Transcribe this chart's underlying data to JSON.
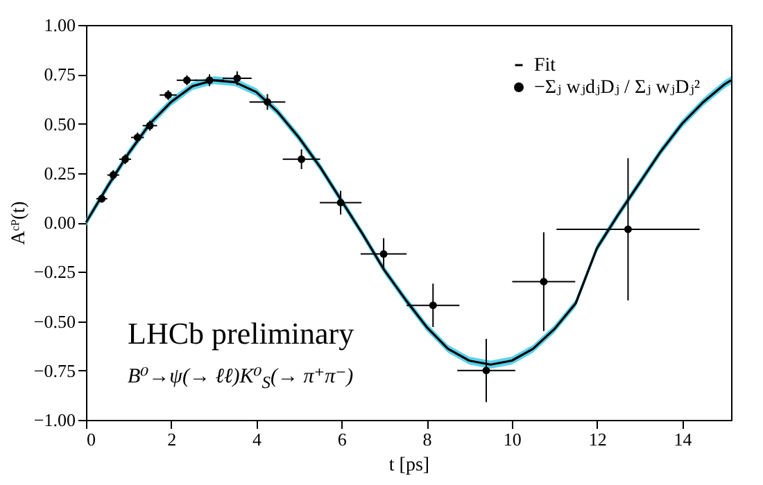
{
  "chart_data": {
    "type": "scatter",
    "xlabel": "t [ps]",
    "ylabel": "Aᶜᴾ(t)",
    "xlim": [
      0,
      15.15
    ],
    "xticks": [
      0,
      2,
      4,
      6,
      8,
      10,
      12,
      14
    ],
    "ylim": [
      -1,
      1
    ],
    "yticks": [
      {
        "value": -1,
        "label": "−1.00"
      },
      {
        "value": -0.75,
        "label": "−0.75"
      },
      {
        "value": -0.5,
        "label": "−0.50"
      },
      {
        "value": -0.25,
        "label": "−0.25"
      },
      {
        "value": 0,
        "label": "0.00"
      },
      {
        "value": 0.25,
        "label": "0.25"
      },
      {
        "value": 0.5,
        "label": "0.50"
      },
      {
        "value": 0.75,
        "label": "0.75"
      },
      {
        "value": 1,
        "label": "1.00"
      }
    ],
    "series": [
      {
        "name": "Fit",
        "type": "line",
        "color": "#000000",
        "x": [
          0,
          0.5,
          1,
          1.5,
          2,
          2.5,
          3,
          3.5,
          4,
          4.5,
          5,
          5.5,
          6,
          6.5,
          7,
          7.5,
          8,
          8.5,
          9,
          9.5,
          10,
          10.5,
          11,
          11.5,
          12,
          12.5,
          13,
          13.5,
          14,
          14.5,
          15,
          15.15
        ],
        "values": [
          0,
          0.18,
          0.35,
          0.5,
          0.61,
          0.69,
          0.72,
          0.71,
          0.66,
          0.56,
          0.43,
          0.28,
          0.11,
          -0.06,
          -0.24,
          -0.39,
          -0.53,
          -0.64,
          -0.7,
          -0.72,
          -0.7,
          -0.64,
          -0.54,
          -0.41,
          -0.13,
          0.04,
          0.2,
          0.36,
          0.5,
          0.61,
          0.7,
          0.72
        ],
        "lower": [
          -0.02,
          0.16,
          0.33,
          0.48,
          0.59,
          0.67,
          0.7,
          0.69,
          0.64,
          0.54,
          0.41,
          0.26,
          0.09,
          -0.08,
          -0.26,
          -0.41,
          -0.55,
          -0.66,
          -0.72,
          -0.74,
          -0.72,
          -0.66,
          -0.56,
          -0.43,
          -0.15,
          0.02,
          0.18,
          0.34,
          0.48,
          0.59,
          0.68,
          0.7
        ],
        "upper": [
          0.02,
          0.2,
          0.37,
          0.52,
          0.63,
          0.71,
          0.74,
          0.73,
          0.68,
          0.58,
          0.45,
          0.3,
          0.13,
          -0.04,
          -0.22,
          -0.37,
          -0.51,
          -0.62,
          -0.68,
          -0.7,
          -0.68,
          -0.62,
          -0.52,
          -0.39,
          -0.11,
          0.06,
          0.22,
          0.38,
          0.52,
          0.63,
          0.72,
          0.74
        ]
      },
      {
        "name": "−Σⱼ wⱼdⱼDⱼ / Σⱼ wⱼDⱼ²",
        "color": "#000000",
        "marker": "circle",
        "x": [
          0.37,
          0.64,
          0.92,
          1.21,
          1.5,
          1.93,
          2.37,
          2.9,
          3.55,
          4.26,
          5.06,
          5.98,
          6.99,
          8.15,
          9.4,
          10.75,
          12.73
        ],
        "values": [
          0.12,
          0.24,
          0.32,
          0.43,
          0.49,
          0.645,
          0.72,
          0.72,
          0.73,
          0.61,
          0.32,
          0.1,
          -0.16,
          -0.42,
          -0.75,
          -0.3,
          -0.035
        ],
        "errors": [
          0.02,
          0.025,
          0.025,
          0.025,
          0.025,
          0.025,
          0.025,
          0.03,
          0.035,
          0.04,
          0.05,
          0.06,
          0.08,
          0.11,
          0.16,
          0.25,
          0.36
        ],
        "xerrors": [
          0.13,
          0.14,
          0.14,
          0.15,
          0.17,
          0.2,
          0.24,
          0.34,
          0.34,
          0.42,
          0.44,
          0.49,
          0.54,
          0.62,
          0.68,
          0.74,
          1.68
        ]
      }
    ],
    "annotations": [
      "LHCb preliminary",
      "B⁰→ψ(→ ℓℓ)K⁰$_{S}$(→ π⁺π⁻)"
    ],
    "grid": false,
    "legend": "top right",
    "line_style": "solid"
  }
}
